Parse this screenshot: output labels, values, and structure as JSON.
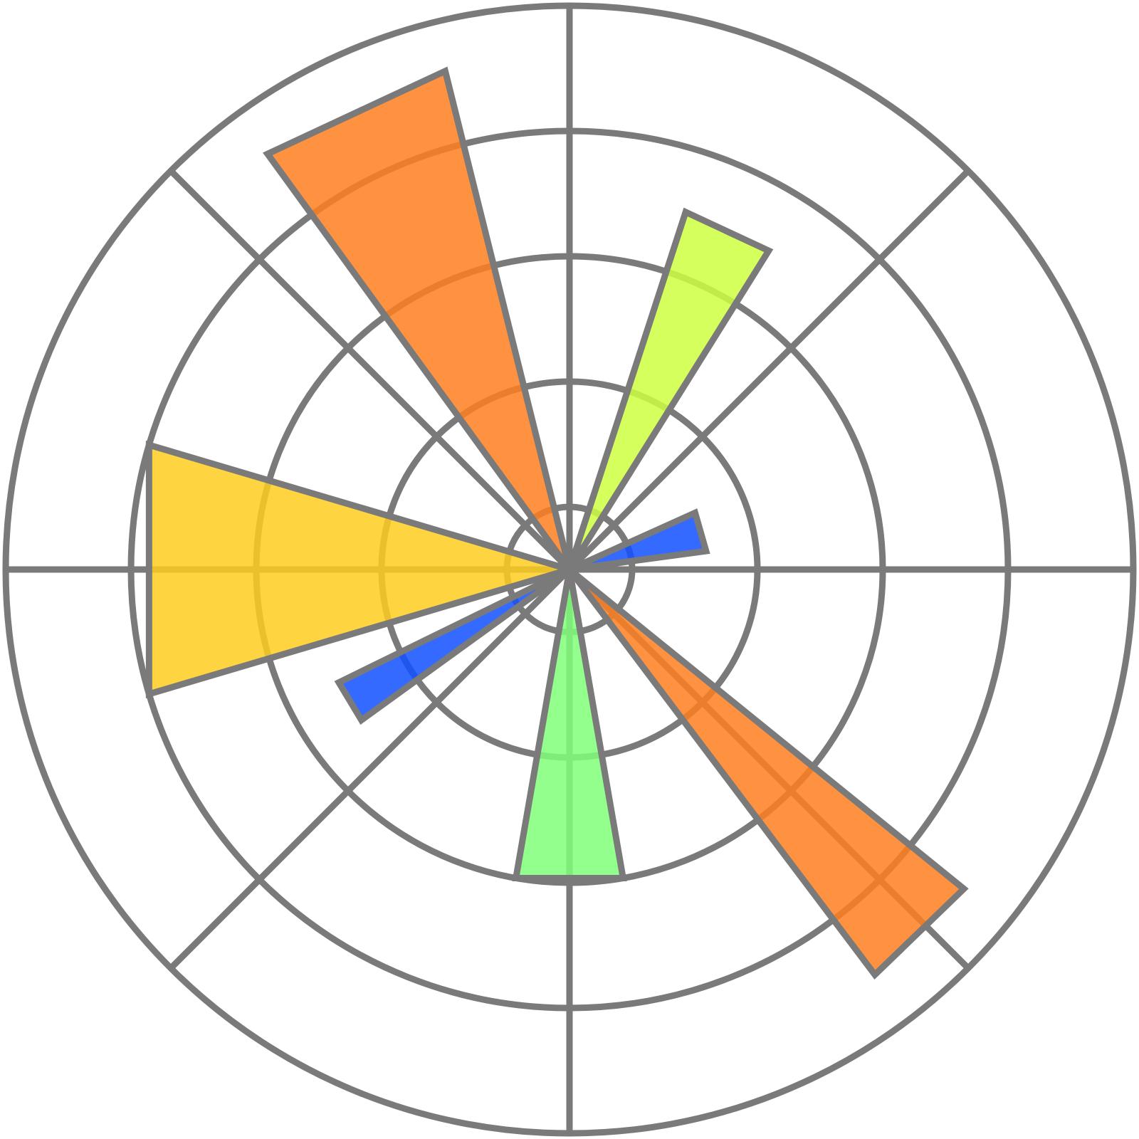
{
  "chart_data": {
    "type": "polar_bar",
    "theta": [
      115,
      65,
      16,
      -46,
      -90,
      211,
      180
    ],
    "widths": [
      22,
      14,
      16.6,
      14,
      19.7,
      9.8,
      33
    ],
    "values": [
      8.2,
      6.0,
      2.2,
      8.1,
      5.0,
      4.1,
      7.0
    ],
    "colors": [
      "#ff7f1e",
      "#ccff40",
      "#1050ff",
      "#ff7f1e",
      "#80ff78",
      "#1050ff",
      "#ffcc20"
    ],
    "edgecolor": "#7a7a7a",
    "rlim": [
      0,
      9
    ],
    "rticks": [
      1,
      3,
      5,
      7
    ],
    "thetaticks": [
      0,
      45,
      90,
      135,
      180,
      225,
      270,
      315
    ],
    "grid": true
  }
}
